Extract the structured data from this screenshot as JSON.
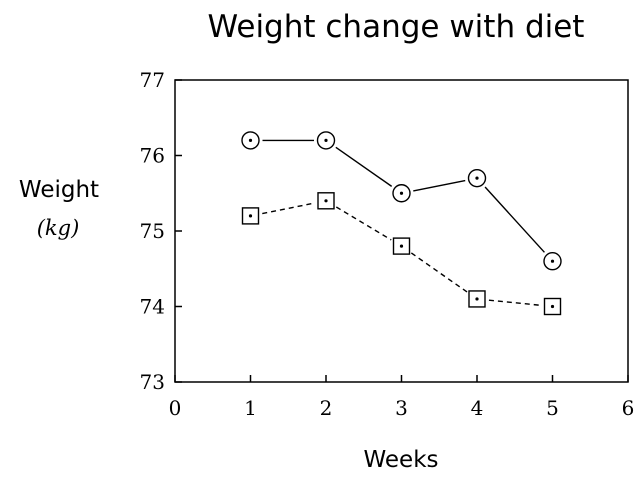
{
  "chart_data": {
    "type": "line",
    "title": "Weight change with diet",
    "xlabel": "Weeks",
    "ylabel": "Weight",
    "ylabel_unit": "(kg)",
    "x_ticks": [
      "0",
      "1",
      "2",
      "3",
      "4",
      "5",
      "6"
    ],
    "y_ticks": [
      "73",
      "74",
      "75",
      "76",
      "77"
    ],
    "xlim": [
      0,
      6
    ],
    "ylim": [
      73,
      77
    ],
    "grid": false,
    "legend": false,
    "series": [
      {
        "marker": "circle-dot",
        "line_style": "solid",
        "x": [
          1,
          2,
          3,
          4,
          5
        ],
        "y": [
          76.2,
          76.2,
          75.5,
          75.7,
          74.6
        ]
      },
      {
        "marker": "square-dot",
        "line_style": "dashed",
        "x": [
          1,
          2,
          3,
          4,
          5
        ],
        "y": [
          75.2,
          75.4,
          74.8,
          74.1,
          74.0
        ]
      }
    ],
    "colors": {
      "axes": "#000000",
      "lines": "#000000",
      "marker_fill": "#ffffff"
    }
  }
}
